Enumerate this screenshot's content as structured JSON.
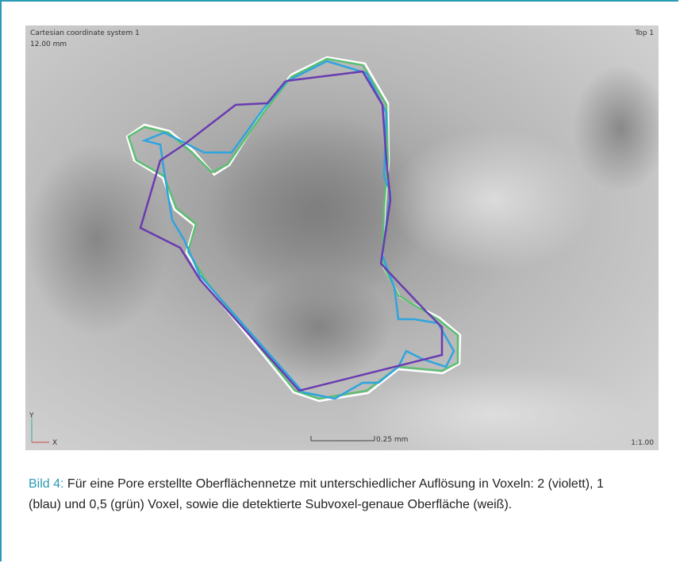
{
  "viewer": {
    "labels": [
      "Cartesian coordinate system 1",
      "12.00 mm",
      "Top 1",
      "0.25 mm",
      "Y",
      "X",
      "1:1.00"
    ]
  },
  "caption": {
    "lead": "Bild 4:",
    "text": "Für eine Pore erstellte Oberflächennetze mit unterschiedlicher Auflösung in Voxeln: 2 (violett), 1 (blau) und 0,5 (grün) Voxel, sowie die detektierte Subvoxel-genaue Oberfläche (weiß)."
  }
}
